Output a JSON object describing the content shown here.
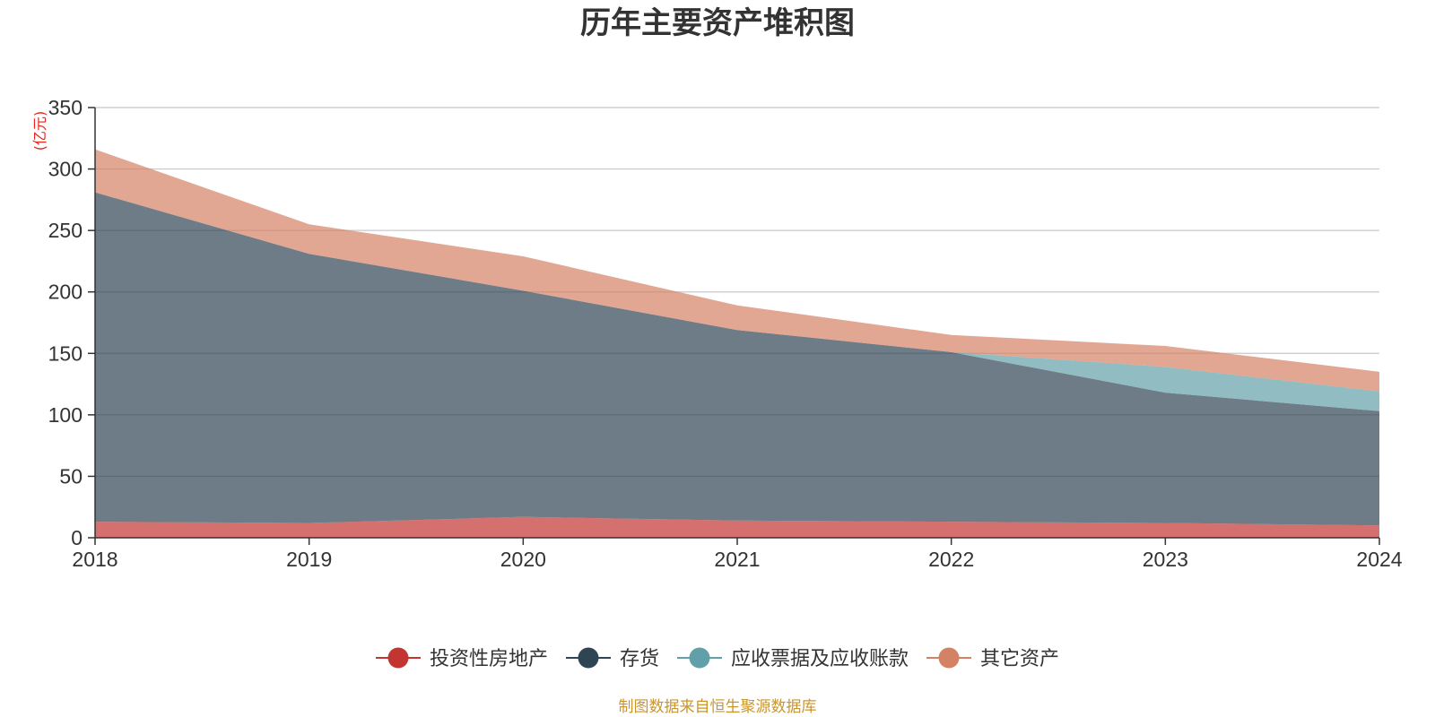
{
  "chart_data": {
    "type": "area",
    "stacked": true,
    "title": "历年主要资产堆积图",
    "unit_label": "(亿元)",
    "x": [
      "2018",
      "2019",
      "2020",
      "2021",
      "2022",
      "2023",
      "2024"
    ],
    "ylim": [
      0,
      350
    ],
    "yticks": [
      "0",
      "50",
      "100",
      "150",
      "200",
      "250",
      "300",
      "350"
    ],
    "grid": true,
    "legend_position": "bottom",
    "series": [
      {
        "name": "投资性房地产",
        "color": "#c23531",
        "values": [
          13,
          12,
          17,
          14,
          13,
          12,
          10
        ]
      },
      {
        "name": "存货",
        "color": "#2f4554",
        "values": [
          268,
          219,
          184,
          155,
          138,
          106,
          93
        ]
      },
      {
        "name": "应收票据及应收账款",
        "color": "#61a0a8",
        "values": [
          0,
          0,
          0,
          0,
          0,
          21,
          16
        ]
      },
      {
        "name": "其它资产",
        "color": "#d48265",
        "values": [
          35,
          24,
          28,
          20,
          14,
          17,
          16
        ]
      }
    ],
    "source_note": "制图数据来自恒生聚源数据库"
  }
}
